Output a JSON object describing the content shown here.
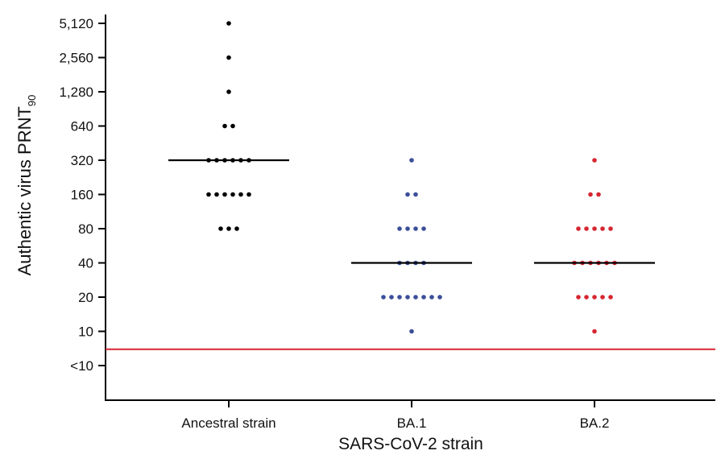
{
  "chart_data": {
    "type": "scatter",
    "subtype": "dot-plot with median lines",
    "title": "",
    "xlabel": "SARS-CoV-2 strain",
    "ylabel": "Authentic virus PRNT",
    "ylabel_subscript": "90",
    "yscale": "log2",
    "yticks": [
      "5,120",
      "2,560",
      "1,280",
      "640",
      "320",
      "160",
      "80",
      "40",
      "20",
      "10",
      "<10"
    ],
    "ytick_values": [
      5120,
      2560,
      1280,
      640,
      320,
      160,
      80,
      40,
      20,
      10,
      5
    ],
    "categories": [
      "Ancestral strain",
      "BA.1",
      "BA.2"
    ],
    "threshold_line": {
      "value": 7.5,
      "color": "#d62631",
      "meaning": "limit of detection between <10 and 10"
    },
    "series": [
      {
        "category": "Ancestral strain",
        "color": "#000000",
        "median": 320,
        "values": [
          5120,
          2560,
          1280,
          640,
          640,
          320,
          320,
          320,
          320,
          320,
          320,
          160,
          160,
          160,
          160,
          160,
          160,
          80,
          80,
          80
        ]
      },
      {
        "category": "BA.1",
        "color": "#3b4f9a",
        "median": 40,
        "values": [
          320,
          160,
          160,
          80,
          80,
          80,
          80,
          40,
          40,
          40,
          40,
          20,
          20,
          20,
          20,
          20,
          20,
          20,
          20,
          10
        ]
      },
      {
        "category": "BA.2",
        "color": "#d62631",
        "median": 40,
        "values": [
          320,
          160,
          160,
          80,
          80,
          80,
          80,
          80,
          40,
          40,
          40,
          40,
          40,
          40,
          20,
          20,
          20,
          20,
          20,
          10
        ]
      }
    ],
    "grid": false,
    "legend": "none"
  }
}
